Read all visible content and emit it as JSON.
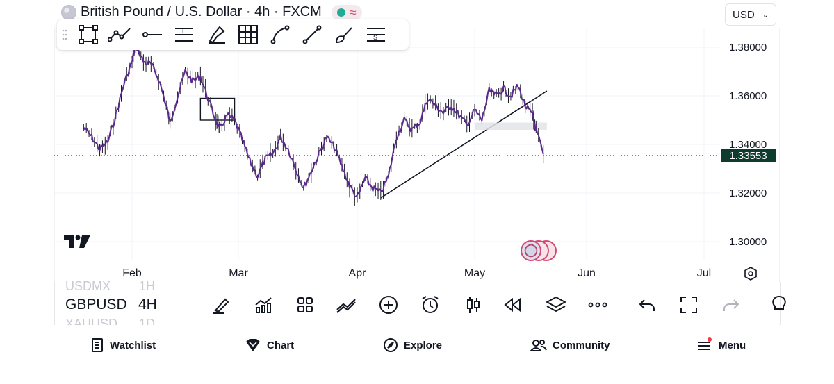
{
  "header": {
    "title": "British Pound / U.S. Dollar · 4h · FXCM",
    "currency": "USD",
    "market_status_color": "#22ab94",
    "flag_icon": "gbp-usd-flag-icon"
  },
  "drawing_toolbar": {
    "tools": [
      {
        "name": "rectangle-tool-icon"
      },
      {
        "name": "path-tool-icon"
      },
      {
        "name": "horizontal-ray-tool-icon"
      },
      {
        "name": "long-position-tool-icon"
      },
      {
        "name": "highlighter-tool-icon"
      },
      {
        "name": "grid-tool-icon"
      },
      {
        "name": "curve-tool-icon"
      },
      {
        "name": "trend-line-tool-icon"
      },
      {
        "name": "brush-tool-icon"
      },
      {
        "name": "short-position-tool-icon"
      }
    ]
  },
  "chart_data": {
    "type": "line",
    "symbol": "GBPUSD",
    "interval": "4h",
    "price_axis_labels": [
      "1.38000",
      "1.36000",
      "1.34000",
      "1.32000",
      "1.30000"
    ],
    "time_axis_labels": [
      "Feb",
      "Mar",
      "Apr",
      "May",
      "Jun",
      "Jul"
    ],
    "ylim": [
      1.295,
      1.385
    ],
    "last_price": "1.33553",
    "grid": true,
    "series": [
      {
        "color": "#5b2a8c",
        "points": [
          [
            "2025-01-20",
            1.347
          ],
          [
            "2025-01-22",
            1.343
          ],
          [
            "2025-01-24",
            1.338
          ],
          [
            "2025-01-26",
            1.341
          ],
          [
            "2025-01-28",
            1.352
          ],
          [
            "2025-01-30",
            1.365
          ],
          [
            "2025-02-01",
            1.374
          ],
          [
            "2025-02-02",
            1.381
          ],
          [
            "2025-02-04",
            1.374
          ],
          [
            "2025-02-06",
            1.373
          ],
          [
            "2025-02-08",
            1.367
          ],
          [
            "2025-02-10",
            1.356
          ],
          [
            "2025-02-11",
            1.349
          ],
          [
            "2025-02-13",
            1.36
          ],
          [
            "2025-02-15",
            1.37
          ],
          [
            "2025-02-17",
            1.366
          ],
          [
            "2025-02-19",
            1.368
          ],
          [
            "2025-02-21",
            1.359
          ],
          [
            "2025-02-23",
            1.35
          ],
          [
            "2025-02-24",
            1.346
          ],
          [
            "2025-02-26",
            1.352
          ],
          [
            "2025-02-28",
            1.35
          ],
          [
            "2025-03-02",
            1.342
          ],
          [
            "2025-03-04",
            1.333
          ],
          [
            "2025-03-06",
            1.327
          ],
          [
            "2025-03-08",
            1.334
          ],
          [
            "2025-03-10",
            1.336
          ],
          [
            "2025-03-12",
            1.343
          ],
          [
            "2025-03-14",
            1.338
          ],
          [
            "2025-03-16",
            1.33
          ],
          [
            "2025-03-18",
            1.322
          ],
          [
            "2025-03-20",
            1.329
          ],
          [
            "2025-03-22",
            1.336
          ],
          [
            "2025-03-24",
            1.343
          ],
          [
            "2025-03-26",
            1.339
          ],
          [
            "2025-03-28",
            1.331
          ],
          [
            "2025-03-30",
            1.323
          ],
          [
            "2025-04-01",
            1.318
          ],
          [
            "2025-04-03",
            1.326
          ],
          [
            "2025-04-05",
            1.322
          ],
          [
            "2025-04-07",
            1.32
          ],
          [
            "2025-04-09",
            1.327
          ],
          [
            "2025-04-11",
            1.343
          ],
          [
            "2025-04-13",
            1.35
          ],
          [
            "2025-04-15",
            1.346
          ],
          [
            "2025-04-17",
            1.349
          ],
          [
            "2025-04-19",
            1.359
          ],
          [
            "2025-04-21",
            1.356
          ],
          [
            "2025-04-23",
            1.353
          ],
          [
            "2025-04-25",
            1.356
          ],
          [
            "2025-04-27",
            1.352
          ],
          [
            "2025-04-29",
            1.348
          ],
          [
            "2025-05-01",
            1.354
          ],
          [
            "2025-05-03",
            1.35
          ],
          [
            "2025-05-05",
            1.362
          ],
          [
            "2025-05-07",
            1.36
          ],
          [
            "2025-05-09",
            1.363
          ],
          [
            "2025-05-11",
            1.36
          ],
          [
            "2025-05-13",
            1.364
          ],
          [
            "2025-05-15",
            1.356
          ],
          [
            "2025-05-17",
            1.352
          ],
          [
            "2025-05-18",
            1.346
          ],
          [
            "2025-05-20",
            1.336
          ]
        ]
      }
    ],
    "drawings": [
      {
        "type": "trend-line",
        "from": [
          "2025-04-07",
          1.318
        ],
        "to": [
          "2025-05-21",
          1.362
        ]
      },
      {
        "type": "rectangle",
        "from": [
          "2025-02-19",
          1.359
        ],
        "to": [
          "2025-02-28",
          1.35
        ]
      },
      {
        "type": "highlight-zone",
        "from": [
          "2025-05-01",
          1.349
        ],
        "to": [
          "2025-05-21",
          1.346
        ]
      }
    ]
  },
  "bottom_toolbar": {
    "symbol": "GBPUSD",
    "interval": "4H",
    "symbol_prev": "USDMX",
    "interval_prev": "1H",
    "symbol_next": "XAUUSD",
    "interval_next": "1D",
    "actions": [
      {
        "name": "drawing-pen-icon"
      },
      {
        "name": "indicators-icon"
      },
      {
        "name": "layouts-grid-icon"
      },
      {
        "name": "compare-icon"
      },
      {
        "name": "add-icon"
      },
      {
        "name": "alarm-icon"
      },
      {
        "name": "candles-icon"
      },
      {
        "name": "replay-icon"
      },
      {
        "name": "layers-icon"
      },
      {
        "name": "more-icon"
      },
      {
        "name": "undo-icon"
      },
      {
        "name": "fullscreen-icon"
      },
      {
        "name": "redo-icon"
      }
    ]
  },
  "nav": {
    "items": [
      {
        "label": "Watchlist",
        "icon": "watchlist-icon"
      },
      {
        "label": "Chart",
        "icon": "chart-diamond-icon"
      },
      {
        "label": "Explore",
        "icon": "compass-icon"
      },
      {
        "label": "Community",
        "icon": "community-icon"
      },
      {
        "label": "Menu",
        "icon": "menu-icon"
      }
    ],
    "notification_color": "#f23645"
  }
}
